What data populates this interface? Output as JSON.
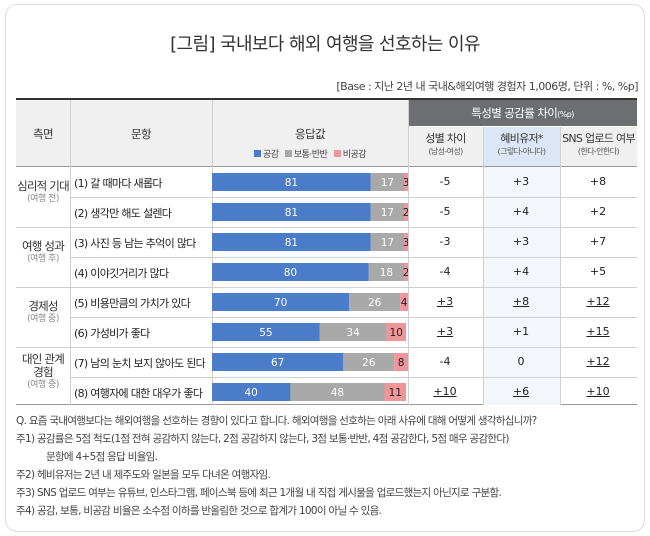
{
  "title": "[그림] 국내보다 해외 여행을 선호하는 이유",
  "base_note": "[Base : 지난 2년 내 국내&해외여행 경험자 1,006명, 단위 : %, %p]",
  "headers": {
    "category": "측면",
    "item": "문항",
    "response": "응답값",
    "diff_group": "특성별 공감률 차이",
    "diff_group_unit": "(%p)",
    "diff_cols": [
      {
        "label": "성별 차이",
        "sub": "(남성-여성)"
      },
      {
        "label": "혜비유저*",
        "sub": "(그렇다-아니다)"
      },
      {
        "label": "SNS 업로드 여부",
        "sub": "(한다-안한다)"
      }
    ]
  },
  "legend": [
    {
      "label": "공감",
      "color": "#4a7cc9"
    },
    {
      "label": "보통·반반",
      "color": "#a9a9a9"
    },
    {
      "label": "비공감",
      "color": "#f0959a"
    }
  ],
  "categories": [
    {
      "name": "심리적 기대",
      "sub": "(여행 전)"
    },
    {
      "name": "여행 성과",
      "sub": "(여행 후)"
    },
    {
      "name": "경제성",
      "sub": "(여행 중)"
    },
    {
      "name1": "대인 관계",
      "name2": "경험",
      "sub": "(여행 중)"
    }
  ],
  "items": [
    {
      "label": "(1) 갈 때마다 새롭다",
      "diffs": [
        "-5",
        "+3",
        "+8"
      ],
      "underline": [
        false,
        false,
        false
      ]
    },
    {
      "label": "(2) 생각만 해도 설렌다",
      "diffs": [
        "-5",
        "+4",
        "+2"
      ],
      "underline": [
        false,
        false,
        false
      ]
    },
    {
      "label": "(3) 사진 등 남는 추억이 많다",
      "diffs": [
        "-3",
        "+3",
        "+7"
      ],
      "underline": [
        false,
        false,
        false
      ]
    },
    {
      "label": "(4) 이야깃거리가 많다",
      "diffs": [
        "-4",
        "+4",
        "+5"
      ],
      "underline": [
        false,
        false,
        false
      ]
    },
    {
      "label": "(5) 비용만큼의 가치가 있다",
      "diffs": [
        "+3",
        "+8",
        "+12"
      ],
      "underline": [
        true,
        true,
        true
      ]
    },
    {
      "label": "(6) 가성비가 좋다",
      "diffs": [
        "+3",
        "+1",
        "+15"
      ],
      "underline": [
        true,
        false,
        true
      ]
    },
    {
      "label": "(7) 남의 눈치 보지 않아도 된다",
      "diffs": [
        "-4",
        "0",
        "+12"
      ],
      "underline": [
        false,
        false,
        true
      ]
    },
    {
      "label": "(8) 여행자에 대한 대우가 좋다",
      "diffs": [
        "+10",
        "+6",
        "+10"
      ],
      "underline": [
        true,
        true,
        true
      ]
    }
  ],
  "chart_data": {
    "type": "bar",
    "stacked": true,
    "orientation": "horizontal",
    "categories": [
      "(1) 갈 때마다 새롭다",
      "(2) 생각만 해도 설렌다",
      "(3) 사진 등 남는 추억이 많다",
      "(4) 이야깃거리가 많다",
      "(5) 비용만큼의 가치가 있다",
      "(6) 가성비가 좋다",
      "(7) 남의 눈치 보지 않아도 된다",
      "(8) 여행자에 대한 대우가 좋다"
    ],
    "series": [
      {
        "name": "공감",
        "color": "#4a7cc9",
        "values": [
          81,
          81,
          81,
          80,
          70,
          55,
          67,
          40
        ]
      },
      {
        "name": "보통·반반",
        "color": "#a9a9a9",
        "values": [
          17,
          17,
          17,
          18,
          26,
          34,
          26,
          48
        ]
      },
      {
        "name": "비공감",
        "color": "#f0959a",
        "values": [
          3,
          2,
          3,
          2,
          4,
          10,
          8,
          11
        ]
      }
    ],
    "xlim": [
      0,
      100
    ]
  },
  "notes": {
    "q": "Q. 요즘 국내여행보다는 해외여행을 선호하는 경향이 있다고 합니다. 해외여행을 선호하는 아래 사유에 대해 어떻게 생각하십니까?",
    "n1": "주1) 공감률은 5점 척도(1점 전혀 공감하지 않는다, 2점 공감하지 않는다, 3점 보통·반반, 4점 공감한다, 5점 매우 공감한다)",
    "n1b": "문항에 4+5점 응답 비율임.",
    "n2": "주2) 헤비유저는 2년 내 제주도와 일본을 모두 다녀온 여행자임.",
    "n3": "주3) SNS 업로드 여부는 유튜브, 인스타그램, 페이스북 등에 최근 1개월 내 직접 게시물을 업로드했는지 아닌지로 구분함.",
    "n4": "주4) 공감, 보통, 비공감 비율은 소수점 이하를 반올림한 것으로 합계가 100이 아닐 수 있음."
  }
}
